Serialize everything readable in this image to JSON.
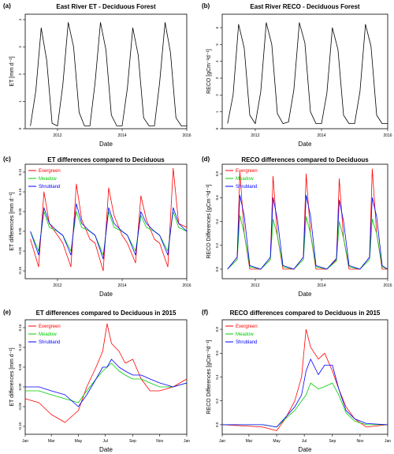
{
  "colors": {
    "evergreen": "#ff0000",
    "meadow": "#00cc00",
    "shrubland": "#0000ff",
    "deciduous": "#000000"
  },
  "chart_data": [
    {
      "panel_label": "(a)",
      "title": "East River ET - Deciduous Forest",
      "type": "line",
      "xlabel": "Date",
      "ylabel": "ET [mm d⁻¹]",
      "x_ticks": [
        "2012",
        "2014",
        "2016"
      ],
      "y_ticks": [
        "0",
        "1",
        "2",
        "3",
        "4"
      ],
      "ylim": [
        0,
        4.2
      ],
      "xlim": [
        "2011-01-01",
        "2016-01-01"
      ],
      "series": [
        {
          "color": "deciduous",
          "x": [
            "2011-03-01",
            "2011-05-01",
            "2011-07-01",
            "2011-09-01",
            "2011-11-01",
            "2012-01-01",
            "2012-03-01",
            "2012-05-01",
            "2012-07-01",
            "2012-09-01",
            "2012-11-01",
            "2013-01-01",
            "2013-03-01",
            "2013-05-01",
            "2013-07-01",
            "2013-09-01",
            "2013-11-01",
            "2014-01-01",
            "2014-03-01",
            "2014-05-01",
            "2014-07-01",
            "2014-09-01",
            "2014-11-01",
            "2015-01-01",
            "2015-03-01",
            "2015-05-01",
            "2015-07-01",
            "2015-09-01",
            "2015-11-01",
            "2016-01-01"
          ],
          "values": [
            0.1,
            1.4,
            3.7,
            2.5,
            0.2,
            0.1,
            1.6,
            3.9,
            3.0,
            0.6,
            0.1,
            0.1,
            1.7,
            3.9,
            2.9,
            0.5,
            0.1,
            0.1,
            1.5,
            3.7,
            2.7,
            0.4,
            0.1,
            0.1,
            1.7,
            3.9,
            2.8,
            0.4,
            0.1,
            0.1
          ]
        }
      ]
    },
    {
      "panel_label": "(b)",
      "title": "East River RECO - Deciduous Forest",
      "type": "line",
      "xlabel": "Date",
      "ylabel": "RECO [gCm⁻²d⁻¹]",
      "x_ticks": [
        "2012",
        "2014",
        "2016"
      ],
      "y_ticks": [
        "0",
        "1",
        "2",
        "3",
        "4",
        "5",
        "6"
      ],
      "ylim": [
        0,
        6.8
      ],
      "xlim": [
        "2011-01-01",
        "2016-01-01"
      ],
      "series": [
        {
          "color": "deciduous",
          "x": [
            "2011-03-01",
            "2011-05-01",
            "2011-07-01",
            "2011-09-01",
            "2011-11-01",
            "2012-01-01",
            "2012-03-01",
            "2012-05-01",
            "2012-07-01",
            "2012-09-01",
            "2012-11-01",
            "2013-01-01",
            "2013-03-01",
            "2013-05-01",
            "2013-07-01",
            "2013-09-01",
            "2013-11-01",
            "2014-01-01",
            "2014-03-01",
            "2014-05-01",
            "2014-07-01",
            "2014-09-01",
            "2014-11-01",
            "2015-01-01",
            "2015-03-01",
            "2015-05-01",
            "2015-07-01",
            "2015-09-01",
            "2015-11-01",
            "2016-01-01"
          ],
          "values": [
            0.3,
            2.0,
            6.2,
            4.8,
            0.8,
            0.3,
            2.2,
            6.3,
            5.0,
            0.9,
            0.3,
            0.4,
            2.3,
            6.3,
            5.1,
            1.0,
            0.3,
            0.3,
            2.1,
            6.0,
            4.7,
            0.8,
            0.3,
            0.3,
            2.2,
            6.2,
            4.9,
            0.8,
            0.3,
            0.3
          ]
        }
      ]
    },
    {
      "panel_label": "(c)",
      "title": "ET differences compared to Deciduous",
      "type": "line",
      "xlabel": "Date",
      "ylabel": "ET differences [mm d⁻¹]",
      "x_ticks": [
        "2012",
        "2014",
        "2016"
      ],
      "y_ticks": [
        "-0.10",
        "-0.05",
        "0.00",
        "0.05",
        "0.10",
        "0.15"
      ],
      "ylim": [
        -0.12,
        0.17
      ],
      "xlim": [
        "2011-01-01",
        "2016-01-01"
      ],
      "legend": [
        "Evergreen",
        "Meadow",
        "Shrubland"
      ],
      "legend_position": "top-left",
      "series": [
        {
          "name": "Evergreen",
          "color": "evergreen",
          "x": [
            "2011-03-01",
            "2011-06-01",
            "2011-08-01",
            "2011-10-01",
            "2012-01-01",
            "2012-03-01",
            "2012-06-01",
            "2012-08-01",
            "2012-10-01",
            "2013-01-01",
            "2013-03-01",
            "2013-06-01",
            "2013-08-01",
            "2013-10-01",
            "2014-01-01",
            "2014-03-01",
            "2014-06-01",
            "2014-08-01",
            "2014-10-01",
            "2015-01-01",
            "2015-03-01",
            "2015-06-01",
            "2015-08-01",
            "2015-10-01",
            "2016-01-01"
          ],
          "values": [
            -0.02,
            -0.09,
            0.1,
            0.02,
            -0.01,
            -0.03,
            -0.09,
            0.12,
            0.03,
            -0.02,
            -0.03,
            -0.1,
            0.11,
            0.04,
            -0.01,
            -0.03,
            -0.08,
            0.09,
            0.03,
            -0.02,
            -0.03,
            -0.09,
            0.16,
            0.02,
            0.01
          ]
        },
        {
          "name": "Meadow",
          "color": "meadow",
          "x": [
            "2011-03-01",
            "2011-06-01",
            "2011-08-01",
            "2011-10-01",
            "2012-01-01",
            "2012-03-01",
            "2012-06-01",
            "2012-08-01",
            "2012-10-01",
            "2013-01-01",
            "2013-03-01",
            "2013-06-01",
            "2013-08-01",
            "2013-10-01",
            "2014-01-01",
            "2014-03-01",
            "2014-06-01",
            "2014-08-01",
            "2014-10-01",
            "2015-01-01",
            "2015-03-01",
            "2015-06-01",
            "2015-08-01",
            "2015-10-01",
            "2016-01-01"
          ],
          "values": [
            0.0,
            -0.05,
            0.05,
            0.01,
            0.0,
            -0.01,
            -0.05,
            0.05,
            0.01,
            0.0,
            -0.01,
            -0.06,
            0.05,
            0.01,
            0.0,
            -0.01,
            -0.05,
            0.04,
            0.01,
            0.0,
            -0.01,
            -0.05,
            0.05,
            0.01,
            0.0
          ]
        },
        {
          "name": "Shrubland",
          "color": "shrubland",
          "x": [
            "2011-03-01",
            "2011-06-01",
            "2011-08-01",
            "2011-10-01",
            "2012-01-01",
            "2012-03-01",
            "2012-06-01",
            "2012-08-01",
            "2012-10-01",
            "2013-01-01",
            "2013-03-01",
            "2013-06-01",
            "2013-08-01",
            "2013-10-01",
            "2014-01-01",
            "2014-03-01",
            "2014-06-01",
            "2014-08-01",
            "2014-10-01",
            "2015-01-01",
            "2015-03-01",
            "2015-06-01",
            "2015-08-01",
            "2015-10-01",
            "2016-01-01"
          ],
          "values": [
            0.0,
            -0.06,
            0.06,
            0.02,
            0.0,
            -0.01,
            -0.06,
            0.07,
            0.02,
            0.0,
            -0.01,
            -0.07,
            0.06,
            0.02,
            0.0,
            -0.01,
            -0.06,
            0.05,
            0.02,
            0.0,
            -0.01,
            -0.06,
            0.06,
            0.02,
            0.0
          ]
        }
      ]
    },
    {
      "panel_label": "(d)",
      "title": "RECO differences compared to Deciduous",
      "type": "line",
      "xlabel": "Date",
      "ylabel": "RECO Differences [gCm⁻²d⁻¹]",
      "x_ticks": [
        "2012",
        "2014",
        "2016"
      ],
      "y_ticks": [
        "0.0",
        "0.2",
        "0.4",
        "0.6",
        "0.8"
      ],
      "ylim": [
        -0.08,
        0.88
      ],
      "xlim": [
        "2011-01-01",
        "2016-01-01"
      ],
      "legend": [
        "Evergreen",
        "Meadow",
        "Shrubland"
      ],
      "legend_position": "top-left",
      "series": [
        {
          "name": "Evergreen",
          "color": "evergreen",
          "x": [
            "2011-03-01",
            "2011-06-15",
            "2011-07-15",
            "2011-09-01",
            "2011-11-01",
            "2012-03-01",
            "2012-06-15",
            "2012-07-15",
            "2012-09-01",
            "2012-11-01",
            "2013-03-01",
            "2013-06-15",
            "2013-07-15",
            "2013-09-01",
            "2013-11-01",
            "2014-03-01",
            "2014-06-15",
            "2014-07-15",
            "2014-09-01",
            "2014-11-01",
            "2015-03-01",
            "2015-06-15",
            "2015-07-15",
            "2015-09-01",
            "2015-11-01",
            "2016-01-01"
          ],
          "values": [
            0.0,
            0.1,
            0.82,
            0.3,
            0.0,
            0.0,
            0.08,
            0.78,
            0.28,
            0.0,
            0.0,
            0.1,
            0.8,
            0.3,
            0.0,
            0.0,
            0.08,
            0.76,
            0.26,
            0.0,
            0.0,
            0.1,
            0.84,
            0.3,
            0.0,
            0.0
          ]
        },
        {
          "name": "Meadow",
          "color": "meadow",
          "x": [
            "2011-03-01",
            "2011-06-15",
            "2011-07-15",
            "2011-09-01",
            "2011-11-01",
            "2012-03-01",
            "2012-06-15",
            "2012-07-15",
            "2012-09-01",
            "2012-11-01",
            "2013-03-01",
            "2013-06-15",
            "2013-07-15",
            "2013-09-01",
            "2013-11-01",
            "2014-03-01",
            "2014-06-15",
            "2014-07-15",
            "2014-09-01",
            "2014-11-01",
            "2015-03-01",
            "2015-06-15",
            "2015-07-15",
            "2015-09-01",
            "2015-11-01",
            "2016-01-01"
          ],
          "values": [
            0.0,
            0.08,
            0.45,
            0.3,
            0.02,
            0.0,
            0.08,
            0.42,
            0.28,
            0.02,
            0.0,
            0.08,
            0.44,
            0.3,
            0.02,
            0.0,
            0.07,
            0.4,
            0.26,
            0.02,
            0.0,
            0.08,
            0.42,
            0.3,
            0.02,
            0.0
          ]
        },
        {
          "name": "Shrubland",
          "color": "shrubland",
          "x": [
            "2011-03-01",
            "2011-06-15",
            "2011-07-15",
            "2011-09-01",
            "2011-11-01",
            "2012-03-01",
            "2012-06-15",
            "2012-07-15",
            "2012-09-01",
            "2012-11-01",
            "2013-03-01",
            "2013-06-15",
            "2013-07-15",
            "2013-09-01",
            "2013-11-01",
            "2014-03-01",
            "2014-06-15",
            "2014-07-15",
            "2014-09-01",
            "2014-11-01",
            "2015-03-01",
            "2015-06-15",
            "2015-07-15",
            "2015-09-01",
            "2015-11-01",
            "2016-01-01"
          ],
          "values": [
            0.0,
            0.1,
            0.62,
            0.45,
            0.03,
            0.0,
            0.1,
            0.6,
            0.42,
            0.03,
            0.0,
            0.1,
            0.62,
            0.45,
            0.03,
            0.0,
            0.09,
            0.58,
            0.4,
            0.03,
            0.0,
            0.1,
            0.6,
            0.44,
            0.03,
            0.0
          ]
        }
      ]
    },
    {
      "panel_label": "(e)",
      "title": "ET differences compared to Deciduous in 2015",
      "type": "line",
      "xlabel": "Date",
      "ylabel": "ET differences [mm d⁻¹]",
      "x_ticks": [
        "Jan",
        "Mar",
        "May",
        "Jul",
        "Sep",
        "Nov",
        "Jan"
      ],
      "y_ticks": [
        "-0.10",
        "-0.05",
        "0.00",
        "0.05",
        "0.10",
        "0.15"
      ],
      "ylim": [
        -0.12,
        0.17
      ],
      "xlim": [
        "2015-01-01",
        "2016-01-01"
      ],
      "legend": [
        "Evergreen",
        "Meadow",
        "Shrubland"
      ],
      "legend_position": "top-left",
      "series": [
        {
          "name": "Evergreen",
          "color": "evergreen",
          "x": [
            "2015-01-01",
            "2015-02-01",
            "2015-03-01",
            "2015-04-01",
            "2015-05-01",
            "2015-05-20",
            "2015-06-10",
            "2015-06-25",
            "2015-07-05",
            "2015-07-15",
            "2015-08-01",
            "2015-08-15",
            "2015-09-01",
            "2015-09-20",
            "2015-10-10",
            "2015-11-01",
            "2015-12-01",
            "2016-01-01"
          ],
          "values": [
            -0.03,
            -0.04,
            -0.07,
            -0.09,
            -0.06,
            0.0,
            0.05,
            0.09,
            0.16,
            0.11,
            0.09,
            0.06,
            0.07,
            0.02,
            -0.01,
            -0.01,
            0.0,
            0.02
          ]
        },
        {
          "name": "Meadow",
          "color": "meadow",
          "x": [
            "2015-01-01",
            "2015-02-01",
            "2015-03-01",
            "2015-04-01",
            "2015-05-01",
            "2015-05-20",
            "2015-06-10",
            "2015-06-25",
            "2015-07-05",
            "2015-07-15",
            "2015-08-01",
            "2015-08-15",
            "2015-09-01",
            "2015-09-20",
            "2015-10-10",
            "2015-11-01",
            "2015-12-01",
            "2016-01-01"
          ],
          "values": [
            -0.01,
            -0.01,
            -0.02,
            -0.03,
            -0.04,
            -0.01,
            0.02,
            0.04,
            0.05,
            0.06,
            0.04,
            0.03,
            0.02,
            0.02,
            0.01,
            0.0,
            0.0,
            0.01
          ]
        },
        {
          "name": "Shrubland",
          "color": "shrubland",
          "x": [
            "2015-01-01",
            "2015-02-01",
            "2015-03-01",
            "2015-04-01",
            "2015-05-01",
            "2015-05-20",
            "2015-06-10",
            "2015-06-25",
            "2015-07-05",
            "2015-07-15",
            "2015-08-01",
            "2015-08-15",
            "2015-09-01",
            "2015-09-20",
            "2015-10-10",
            "2015-11-01",
            "2015-12-01",
            "2016-01-01"
          ],
          "values": [
            0.0,
            0.0,
            -0.01,
            -0.02,
            -0.05,
            -0.02,
            0.02,
            0.05,
            0.05,
            0.07,
            0.05,
            0.04,
            0.03,
            0.03,
            0.02,
            0.01,
            0.0,
            0.01
          ]
        }
      ]
    },
    {
      "panel_label": "(f)",
      "title": "RECO differences compared to Deciduous in 2015",
      "type": "line",
      "xlabel": "Date",
      "ylabel": "RECO Differences [gCm⁻²d⁻¹]",
      "x_ticks": [
        "Jan",
        "Mar",
        "May",
        "Jul",
        "Sep",
        "Nov",
        "Jan"
      ],
      "y_ticks": [
        "0.0",
        "0.2",
        "0.4",
        "0.6",
        "0.8"
      ],
      "ylim": [
        -0.08,
        0.88
      ],
      "xlim": [
        "2015-01-01",
        "2016-01-01"
      ],
      "legend": [
        "Evergreen",
        "Meadow",
        "Shrubland"
      ],
      "legend_position": "top-left",
      "series": [
        {
          "name": "Evergreen",
          "color": "evergreen",
          "x": [
            "2015-01-01",
            "2015-02-15",
            "2015-04-01",
            "2015-05-01",
            "2015-05-20",
            "2015-06-10",
            "2015-06-25",
            "2015-07-05",
            "2015-07-15",
            "2015-08-01",
            "2015-08-15",
            "2015-09-01",
            "2015-09-15",
            "2015-10-01",
            "2015-10-20",
            "2015-11-15",
            "2016-01-01"
          ],
          "values": [
            0.0,
            -0.01,
            -0.02,
            -0.05,
            0.05,
            0.2,
            0.4,
            0.8,
            0.65,
            0.55,
            0.6,
            0.45,
            0.3,
            0.15,
            0.05,
            -0.02,
            0.0
          ]
        },
        {
          "name": "Meadow",
          "color": "meadow",
          "x": [
            "2015-01-01",
            "2015-02-15",
            "2015-04-01",
            "2015-05-01",
            "2015-05-20",
            "2015-06-10",
            "2015-06-25",
            "2015-07-05",
            "2015-07-15",
            "2015-08-01",
            "2015-08-15",
            "2015-09-01",
            "2015-09-15",
            "2015-10-01",
            "2015-10-20",
            "2015-11-15",
            "2016-01-01"
          ],
          "values": [
            0.0,
            0.0,
            0.0,
            -0.02,
            0.05,
            0.12,
            0.2,
            0.25,
            0.35,
            0.3,
            0.32,
            0.35,
            0.25,
            0.1,
            0.03,
            0.0,
            0.0
          ]
        },
        {
          "name": "Shrubland",
          "color": "shrubland",
          "x": [
            "2015-01-01",
            "2015-02-15",
            "2015-04-01",
            "2015-05-01",
            "2015-05-20",
            "2015-06-10",
            "2015-06-25",
            "2015-07-05",
            "2015-07-15",
            "2015-08-01",
            "2015-08-15",
            "2015-09-01",
            "2015-09-15",
            "2015-10-01",
            "2015-10-20",
            "2015-11-15",
            "2016-01-01"
          ],
          "values": [
            0.0,
            0.0,
            0.0,
            -0.02,
            0.06,
            0.15,
            0.25,
            0.45,
            0.55,
            0.42,
            0.5,
            0.5,
            0.3,
            0.12,
            0.05,
            0.01,
            0.0
          ]
        }
      ]
    }
  ]
}
